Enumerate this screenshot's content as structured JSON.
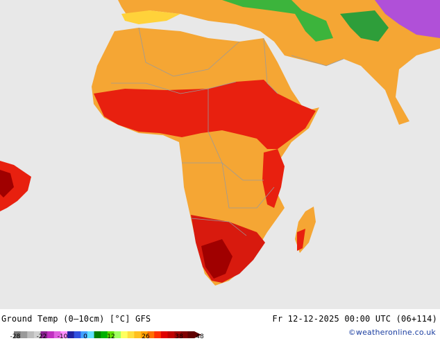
{
  "map": {
    "title": "Ground Temp (0–10cm) [°C] GFS",
    "datetime": "Fr 12-12-2025 00:00 UTC (06+114)",
    "credit": "©weatheronline.co.uk"
  },
  "colors": {
    "ocean": "#e8e8e8",
    "land_dry": "#f5a634",
    "land_hot": "#e8200f",
    "land_very_hot": "#a00000",
    "cool_green": "#3cb43c",
    "cold_purple": "#b050d8",
    "border": "#9a9a9a"
  },
  "legend": {
    "ticks": [
      "-28",
      "-22",
      "-10",
      "0",
      "12",
      "26",
      "38",
      "48"
    ],
    "colors": [
      "#7a7a7a",
      "#9a9a9a",
      "#bcbcbc",
      "#d0d0d0",
      "#8a2090",
      "#c030c0",
      "#e060e0",
      "#ff90ff",
      "#2020a0",
      "#3050e0",
      "#40a0ff",
      "#60e0ff",
      "#008000",
      "#00b000",
      "#60e000",
      "#a0ff60",
      "#ffff60",
      "#ffe040",
      "#ffc020",
      "#ffa000",
      "#ff7000",
      "#ff3000",
      "#e00000",
      "#c00000",
      "#a00000",
      "#800000",
      "#600000"
    ]
  }
}
